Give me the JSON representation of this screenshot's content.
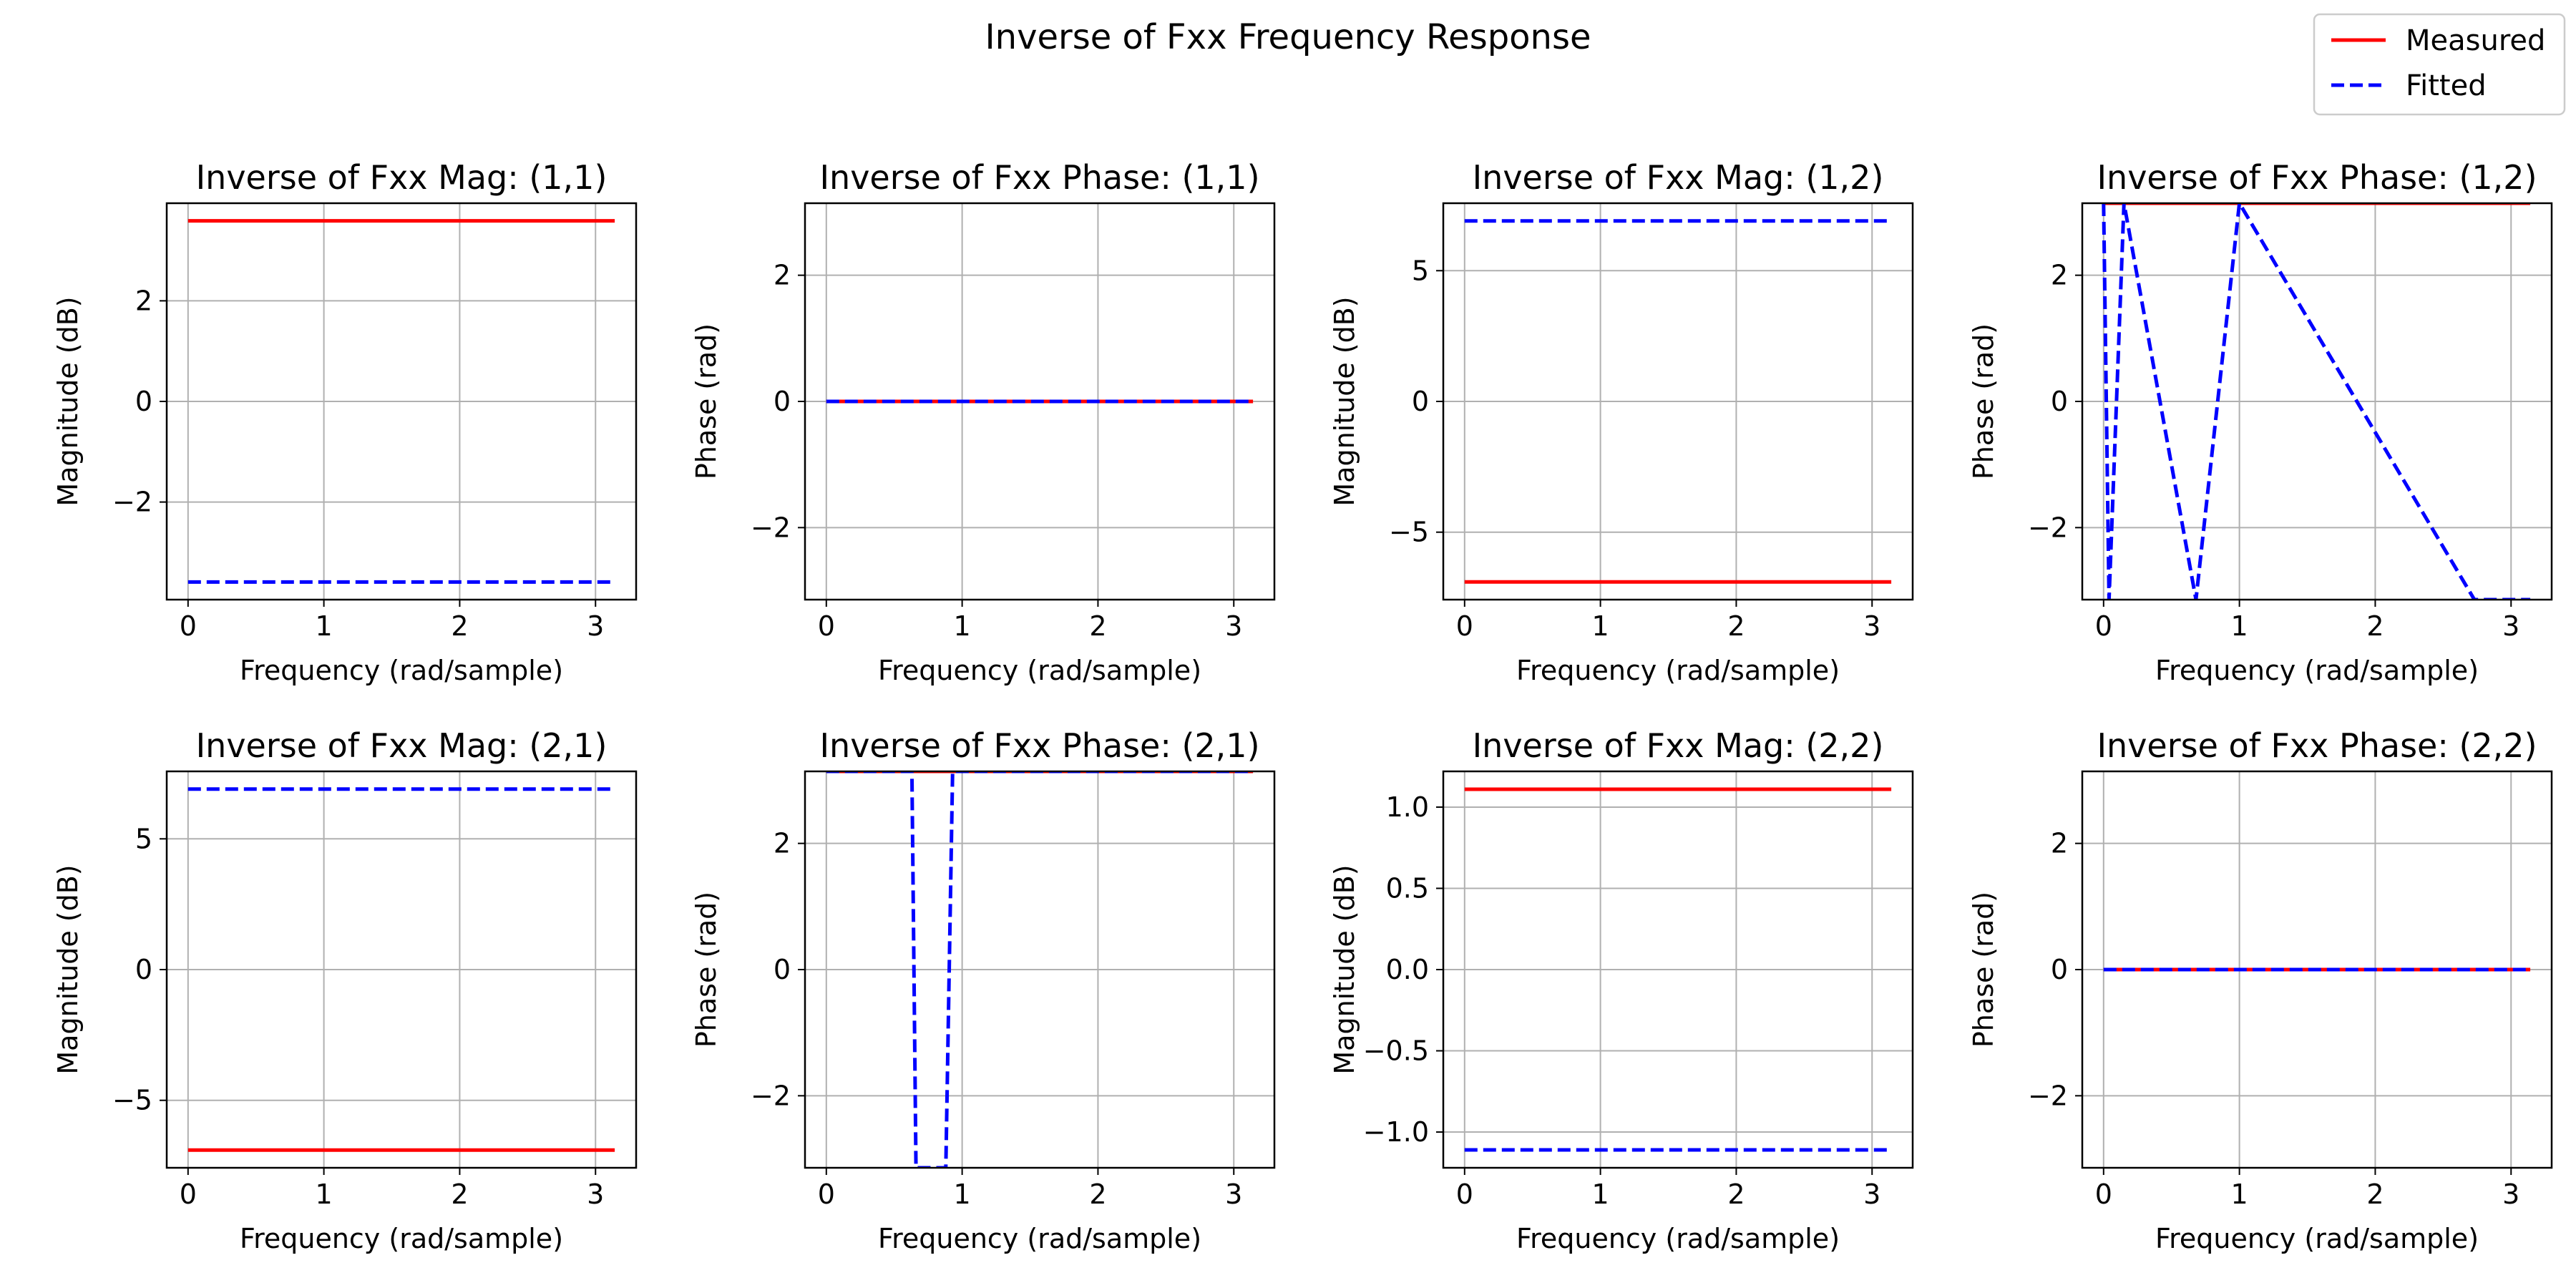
{
  "figure": {
    "title": "Inverse of Fxx Frequency Response"
  },
  "legend": {
    "placement": "top-right",
    "entries": [
      {
        "label": "Measured",
        "color": "#ff0000",
        "style": "solid"
      },
      {
        "label": "Fitted",
        "color": "#0000ff",
        "style": "dashed"
      }
    ]
  },
  "colors": {
    "measured": "#ff0000",
    "fitted": "#0000ff",
    "grid": "#b0b0b0"
  },
  "chart_data": [
    {
      "type": "line",
      "title": "Inverse of Fxx Mag: (1,1)",
      "xlabel": "Frequency (rad/sample)",
      "ylabel": "Magnitude (dB)",
      "xlim": [
        -0.157,
        3.299
      ],
      "ylim": [
        -3.94,
        3.94
      ],
      "xticks": [
        0,
        1,
        2,
        3
      ],
      "xtick_labels": [
        "0",
        "1",
        "2",
        "3"
      ],
      "yticks": [
        -2,
        0,
        2
      ],
      "ytick_labels": [
        "−2",
        "0",
        "2"
      ],
      "grid": true,
      "series": [
        {
          "name": "Measured",
          "x": [
            0,
            3.1416
          ],
          "y": [
            3.59,
            3.59
          ]
        },
        {
          "name": "Fitted",
          "x": [
            0,
            3.1416
          ],
          "y": [
            -3.59,
            -3.59
          ]
        }
      ]
    },
    {
      "type": "line",
      "title": "Inverse of Fxx Phase: (1,1)",
      "xlabel": "Frequency (rad/sample)",
      "ylabel": "Phase (rad)",
      "xlim": [
        -0.157,
        3.299
      ],
      "ylim": [
        -3.1416,
        3.1416
      ],
      "xticks": [
        0,
        1,
        2,
        3
      ],
      "xtick_labels": [
        "0",
        "1",
        "2",
        "3"
      ],
      "yticks": [
        -2,
        0,
        2
      ],
      "ytick_labels": [
        "−2",
        "0",
        "2"
      ],
      "grid": true,
      "series": [
        {
          "name": "Measured",
          "x": [
            0,
            3.1416
          ],
          "y": [
            0,
            0
          ]
        },
        {
          "name": "Fitted",
          "x": [
            0,
            3.1416
          ],
          "y": [
            0,
            0
          ]
        }
      ]
    },
    {
      "type": "line",
      "title": "Inverse of Fxx Mag: (1,2)",
      "xlabel": "Frequency (rad/sample)",
      "ylabel": "Magnitude (dB)",
      "xlim": [
        -0.157,
        3.299
      ],
      "ylim": [
        -7.58,
        7.58
      ],
      "xticks": [
        0,
        1,
        2,
        3
      ],
      "xtick_labels": [
        "0",
        "1",
        "2",
        "3"
      ],
      "yticks": [
        -5,
        0,
        5
      ],
      "ytick_labels": [
        "−5",
        "0",
        "5"
      ],
      "grid": true,
      "series": [
        {
          "name": "Measured",
          "x": [
            0,
            3.1416
          ],
          "y": [
            -6.9,
            -6.9
          ]
        },
        {
          "name": "Fitted",
          "x": [
            0,
            3.1416
          ],
          "y": [
            6.9,
            6.9
          ]
        }
      ]
    },
    {
      "type": "line",
      "title": "Inverse of Fxx Phase: (1,2)",
      "xlabel": "Frequency (rad/sample)",
      "ylabel": "Phase (rad)",
      "xlim": [
        -0.157,
        3.299
      ],
      "ylim": [
        -3.1416,
        3.1416
      ],
      "xticks": [
        0,
        1,
        2,
        3
      ],
      "xtick_labels": [
        "0",
        "1",
        "2",
        "3"
      ],
      "yticks": [
        -2,
        0,
        2
      ],
      "ytick_labels": [
        "−2",
        "0",
        "2"
      ],
      "grid": true,
      "series": [
        {
          "name": "Measured",
          "x": [
            0,
            3.1416
          ],
          "y": [
            3.1416,
            3.1416
          ]
        },
        {
          "name": "Fitted",
          "x": [
            0,
            0.0,
            0.04,
            0.04,
            0.15,
            0.15,
            0.68,
            0.68,
            1.0,
            1.0,
            2.73,
            2.73,
            3.1416
          ],
          "y": [
            3.1416,
            3.1416,
            -3.1416,
            -3.1416,
            3.1416,
            3.1416,
            -3.1416,
            -3.1416,
            3.1416,
            3.1416,
            -3.1416,
            -3.1416,
            -3.1416
          ]
        }
      ]
    },
    {
      "type": "line",
      "title": "Inverse of Fxx Mag: (2,1)",
      "xlabel": "Frequency (rad/sample)",
      "ylabel": "Magnitude (dB)",
      "xlim": [
        -0.157,
        3.299
      ],
      "ylim": [
        -7.58,
        7.58
      ],
      "xticks": [
        0,
        1,
        2,
        3
      ],
      "xtick_labels": [
        "0",
        "1",
        "2",
        "3"
      ],
      "yticks": [
        -5,
        0,
        5
      ],
      "ytick_labels": [
        "−5",
        "0",
        "5"
      ],
      "grid": true,
      "series": [
        {
          "name": "Measured",
          "x": [
            0,
            3.1416
          ],
          "y": [
            -6.9,
            -6.9
          ]
        },
        {
          "name": "Fitted",
          "x": [
            0,
            3.1416
          ],
          "y": [
            6.9,
            6.9
          ]
        }
      ]
    },
    {
      "type": "line",
      "title": "Inverse of Fxx Phase: (2,1)",
      "xlabel": "Frequency (rad/sample)",
      "ylabel": "Phase (rad)",
      "xlim": [
        -0.157,
        3.299
      ],
      "ylim": [
        -3.1416,
        3.1416
      ],
      "xticks": [
        0,
        1,
        2,
        3
      ],
      "xtick_labels": [
        "0",
        "1",
        "2",
        "3"
      ],
      "yticks": [
        -2,
        0,
        2
      ],
      "ytick_labels": [
        "−2",
        "0",
        "2"
      ],
      "grid": true,
      "series": [
        {
          "name": "Measured",
          "x": [
            0,
            3.1416
          ],
          "y": [
            3.1416,
            3.1416
          ]
        },
        {
          "name": "Fitted",
          "x": [
            0,
            0.63,
            0.66,
            0.66,
            0.88,
            0.93,
            3.1416
          ],
          "y": [
            3.1416,
            3.1416,
            -3.1416,
            -3.1416,
            -3.1416,
            3.1416,
            3.1416
          ]
        }
      ]
    },
    {
      "type": "line",
      "title": "Inverse of Fxx Mag: (2,2)",
      "xlabel": "Frequency (rad/sample)",
      "ylabel": "Magnitude (dB)",
      "xlim": [
        -0.157,
        3.299
      ],
      "ylim": [
        -1.22,
        1.22
      ],
      "xticks": [
        0,
        1,
        2,
        3
      ],
      "xtick_labels": [
        "0",
        "1",
        "2",
        "3"
      ],
      "yticks": [
        -1.0,
        -0.5,
        0.0,
        0.5,
        1.0
      ],
      "ytick_labels": [
        "−1.0",
        "−0.5",
        "0.0",
        "0.5",
        "1.0"
      ],
      "grid": true,
      "series": [
        {
          "name": "Measured",
          "x": [
            0,
            3.1416
          ],
          "y": [
            1.11,
            1.11
          ]
        },
        {
          "name": "Fitted",
          "x": [
            0,
            3.1416
          ],
          "y": [
            -1.11,
            -1.11
          ]
        }
      ]
    },
    {
      "type": "line",
      "title": "Inverse of Fxx Phase: (2,2)",
      "xlabel": "Frequency (rad/sample)",
      "ylabel": "Phase (rad)",
      "xlim": [
        -0.157,
        3.299
      ],
      "ylim": [
        -3.1416,
        3.1416
      ],
      "xticks": [
        0,
        1,
        2,
        3
      ],
      "xtick_labels": [
        "0",
        "1",
        "2",
        "3"
      ],
      "yticks": [
        -2,
        0,
        2
      ],
      "ytick_labels": [
        "−2",
        "0",
        "2"
      ],
      "grid": true,
      "series": [
        {
          "name": "Measured",
          "x": [
            0,
            3.1416
          ],
          "y": [
            0,
            0
          ]
        },
        {
          "name": "Fitted",
          "x": [
            0,
            3.1416
          ],
          "y": [
            0,
            0
          ]
        }
      ]
    }
  ]
}
